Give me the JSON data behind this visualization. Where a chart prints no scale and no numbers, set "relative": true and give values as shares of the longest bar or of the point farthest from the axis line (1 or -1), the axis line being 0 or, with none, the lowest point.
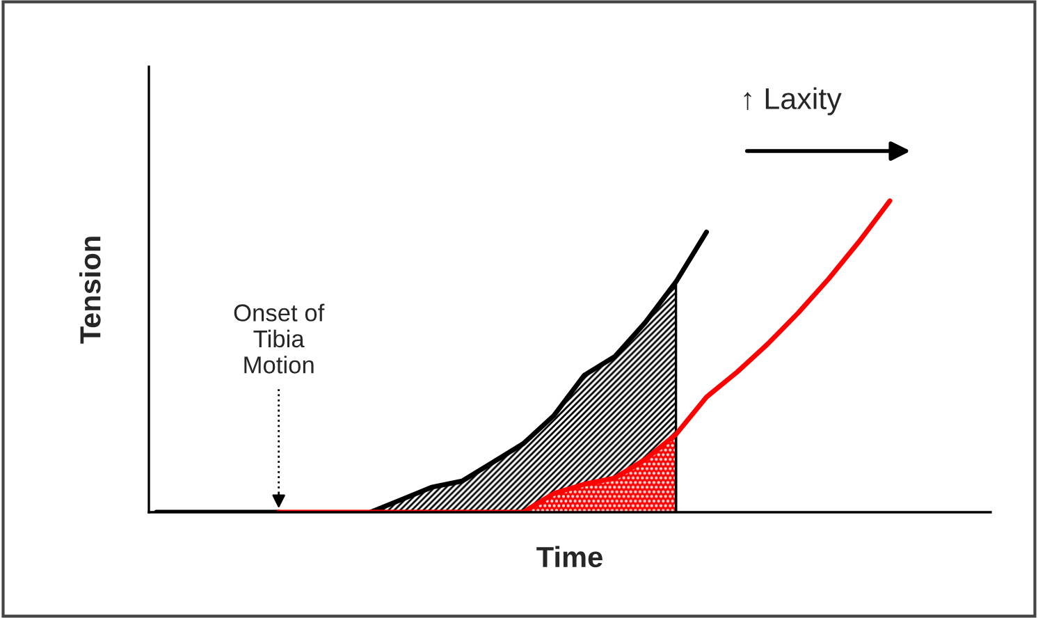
{
  "chart_data": {
    "type": "line",
    "relative": true,
    "xlabel": "Time",
    "ylabel": "Tension",
    "categories": [
      null,
      null,
      null,
      null,
      null,
      null,
      null,
      null,
      null,
      null,
      null,
      null,
      null,
      null,
      null,
      null,
      null,
      null,
      null,
      null,
      null,
      null,
      null,
      null,
      null
    ],
    "series": [
      {
        "type": "area",
        "color": "#000000",
        "values": [
          null,
          null,
          null,
          null,
          null,
          null,
          null,
          0,
          0.04,
          0.08,
          0.1,
          0.16,
          0.22,
          0.31,
          0.44,
          0.5,
          0.61,
          0.74,
          null,
          null,
          null,
          null,
          null,
          null,
          null
        ]
      },
      {
        "type": "area",
        "color": "#ff0000",
        "values": [
          null,
          null,
          null,
          null,
          null,
          null,
          null,
          null,
          null,
          null,
          null,
          null,
          0,
          0.06,
          0.09,
          0.11,
          0.17,
          0.25,
          null,
          null,
          null,
          null,
          null,
          null,
          null
        ]
      },
      {
        "color": "#000000",
        "values": [
          0,
          0,
          0,
          0,
          0,
          null,
          null,
          0,
          0.04,
          0.08,
          0.1,
          0.16,
          0.22,
          0.31,
          0.44,
          0.5,
          0.61,
          0.74,
          0.9,
          null,
          null,
          null,
          null,
          null,
          null
        ]
      },
      {
        "color": "#ff0000",
        "values": [
          null,
          null,
          null,
          null,
          0,
          0,
          0,
          0,
          0,
          0,
          0,
          0,
          0,
          0.06,
          0.09,
          0.11,
          0.17,
          0.25,
          0.37,
          0.45,
          0.54,
          0.64,
          0.75,
          0.87,
          1.0
        ]
      }
    ],
    "annotations": [
      "Onset of\nTibia\nMotion",
      "↑ Laxity"
    ],
    "grid": false,
    "legend": false
  }
}
